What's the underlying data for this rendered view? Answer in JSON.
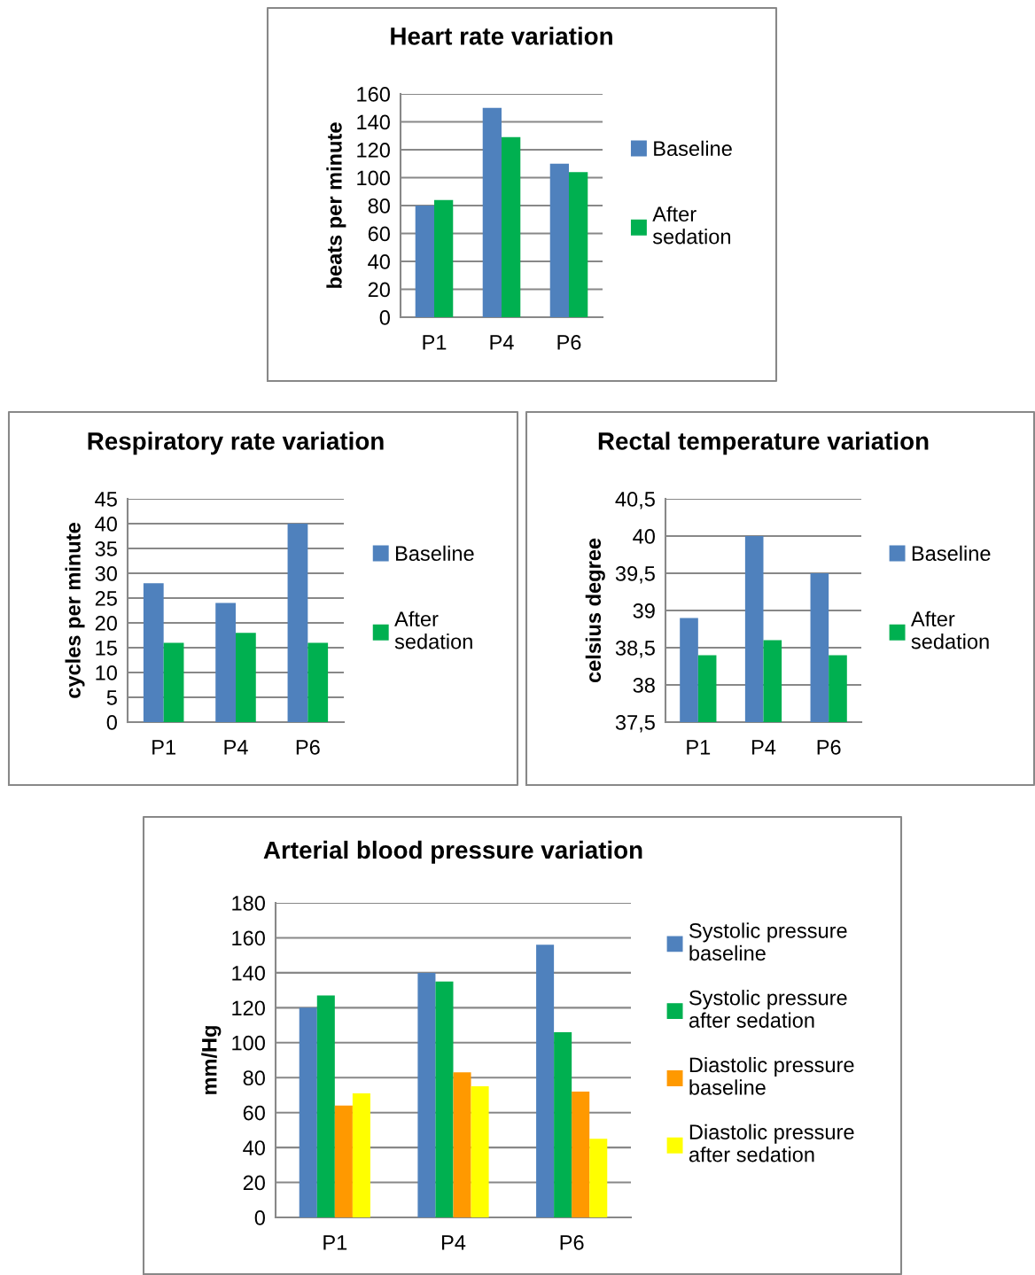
{
  "chart_data": [
    {
      "type": "bar",
      "title": "Heart rate variation",
      "ylabel": "beats per minute",
      "categories": [
        "P1",
        "P4",
        "P6"
      ],
      "series": [
        {
          "name": "Baseline",
          "color": "#4f81bd",
          "values": [
            80,
            150,
            110
          ]
        },
        {
          "name": "After sedation",
          "color": "#00b050",
          "values": [
            84,
            129,
            104
          ]
        }
      ],
      "ylim": [
        0,
        160
      ],
      "yticks": [
        0,
        20,
        40,
        60,
        80,
        100,
        120,
        140,
        160
      ],
      "grid": "y",
      "legend": "right"
    },
    {
      "type": "bar",
      "title": "Respiratory rate variation",
      "ylabel": "cycles per minute",
      "categories": [
        "P1",
        "P4",
        "P6"
      ],
      "series": [
        {
          "name": "Baseline",
          "color": "#4f81bd",
          "values": [
            28,
            24,
            40
          ]
        },
        {
          "name": "After sedation",
          "color": "#00b050",
          "values": [
            16,
            18,
            16
          ]
        }
      ],
      "ylim": [
        0,
        45
      ],
      "yticks": [
        0,
        5,
        10,
        15,
        20,
        25,
        30,
        35,
        40,
        45
      ],
      "grid": "y",
      "legend": "right"
    },
    {
      "type": "bar",
      "title": "Rectal temperature variation",
      "ylabel": "celsius degree",
      "categories": [
        "P1",
        "P4",
        "P6"
      ],
      "series": [
        {
          "name": "Baseline",
          "color": "#4f81bd",
          "values": [
            38.9,
            40,
            39.5
          ]
        },
        {
          "name": "After sedation",
          "color": "#00b050",
          "values": [
            38.4,
            38.6,
            38.4
          ]
        }
      ],
      "ylim": [
        37.5,
        40.5
      ],
      "yticks": [
        {
          "value": 37.5,
          "label": "37,5"
        },
        38,
        {
          "value": 38.5,
          "label": "38,5"
        },
        39,
        {
          "value": 39.5,
          "label": "39,5"
        },
        40,
        {
          "value": 40.5,
          "label": "40,5"
        }
      ],
      "grid": "y",
      "legend": "right"
    },
    {
      "type": "bar",
      "title": "Arterial blood pressure variation",
      "ylabel": "mm/Hg",
      "categories": [
        "P1",
        "P4",
        "P6"
      ],
      "series": [
        {
          "name": "Systolic pressure baseline",
          "color": "#4f81bd",
          "values": [
            120,
            140,
            156
          ]
        },
        {
          "name": "Systolic pressure after sedation",
          "color": "#00b050",
          "values": [
            127,
            135,
            106
          ]
        },
        {
          "name": "Diastolic pressure baseline",
          "color": "#ff9900",
          "values": [
            64,
            83,
            72
          ]
        },
        {
          "name": "Diastolic pressure after sedation",
          "color": "#ffff00",
          "values": [
            71,
            75,
            45
          ]
        }
      ],
      "ylim": [
        0,
        180
      ],
      "yticks": [
        0,
        20,
        40,
        60,
        80,
        100,
        120,
        140,
        160,
        180
      ],
      "grid": "y",
      "legend": "right"
    }
  ]
}
